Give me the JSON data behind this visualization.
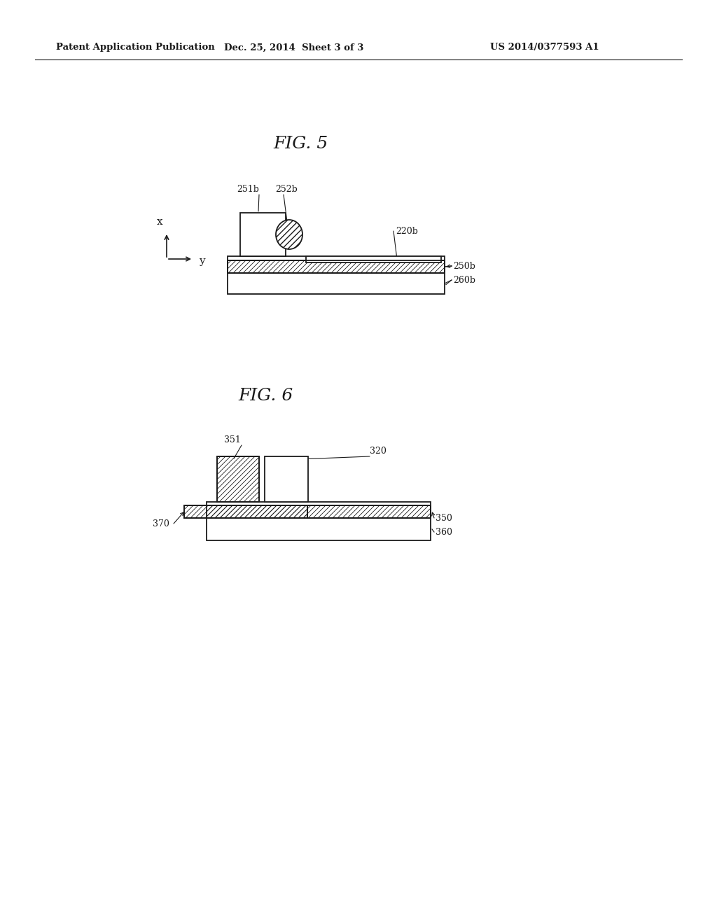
{
  "bg_color": "#ffffff",
  "text_color": "#1a1a1a",
  "header_left": "Patent Application Publication",
  "header_center": "Dec. 25, 2014  Sheet 3 of 3",
  "header_right": "US 2014/0377593 A1",
  "fig5_title": "FIG. 5",
  "fig6_title": "FIG. 6",
  "line_color": "#1a1a1a"
}
